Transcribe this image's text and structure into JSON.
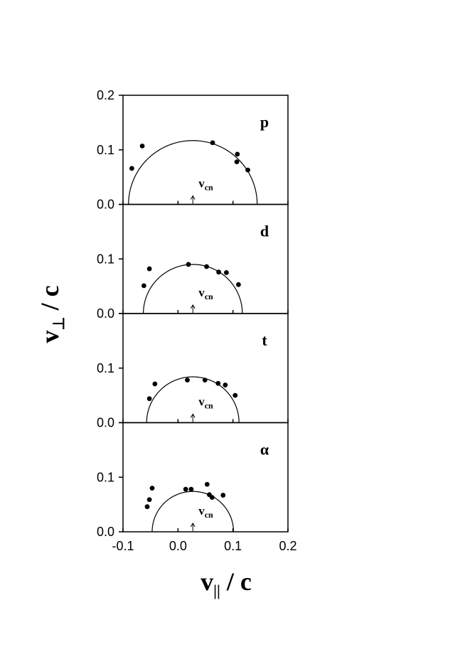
{
  "chart_data": {
    "type": "scatter",
    "xlabel": {
      "main": "v",
      "sub": "||",
      "rest": " / c"
    },
    "ylabel": {
      "main": "v",
      "sub": "⊥",
      "rest": " / c"
    },
    "xlim": [
      -0.1,
      0.2
    ],
    "ylim": [
      0,
      0.2
    ],
    "x_ticks": [
      "-0.1",
      "0.0",
      "0.1",
      "0.2"
    ],
    "y_ticks": [
      "0.0",
      "0.1",
      "0.2"
    ],
    "marker_label": {
      "main": "v",
      "sub": "cn"
    },
    "grid": false,
    "panels": [
      {
        "label": "p",
        "vcn": 0.027,
        "arc": {
          "center": 0.027,
          "radius": 0.117
        },
        "points": [
          {
            "x": -0.084,
            "y": 0.066
          },
          {
            "x": -0.065,
            "y": 0.107
          },
          {
            "x": 0.063,
            "y": 0.113
          },
          {
            "x": 0.108,
            "y": 0.092
          },
          {
            "x": 0.107,
            "y": 0.078
          },
          {
            "x": 0.127,
            "y": 0.063
          }
        ]
      },
      {
        "label": "d",
        "vcn": 0.027,
        "arc": {
          "center": 0.027,
          "radius": 0.09
        },
        "points": [
          {
            "x": -0.062,
            "y": 0.051
          },
          {
            "x": -0.052,
            "y": 0.082
          },
          {
            "x": 0.019,
            "y": 0.09
          },
          {
            "x": 0.052,
            "y": 0.086
          },
          {
            "x": 0.074,
            "y": 0.076
          },
          {
            "x": 0.088,
            "y": 0.075
          },
          {
            "x": 0.11,
            "y": 0.053
          }
        ]
      },
      {
        "label": "t",
        "vcn": 0.027,
        "arc": {
          "center": 0.027,
          "radius": 0.084
        },
        "points": [
          {
            "x": -0.052,
            "y": 0.044
          },
          {
            "x": -0.042,
            "y": 0.071
          },
          {
            "x": 0.017,
            "y": 0.078
          },
          {
            "x": 0.049,
            "y": 0.078
          },
          {
            "x": 0.073,
            "y": 0.072
          },
          {
            "x": 0.086,
            "y": 0.069
          },
          {
            "x": 0.104,
            "y": 0.05
          }
        ]
      },
      {
        "label": "α",
        "vcn": 0.027,
        "arc": {
          "center": 0.027,
          "radius": 0.074
        },
        "points": [
          {
            "x": -0.056,
            "y": 0.046
          },
          {
            "x": -0.052,
            "y": 0.059
          },
          {
            "x": -0.047,
            "y": 0.08
          },
          {
            "x": 0.014,
            "y": 0.078
          },
          {
            "x": 0.024,
            "y": 0.078
          },
          {
            "x": 0.053,
            "y": 0.087
          },
          {
            "x": 0.057,
            "y": 0.068
          },
          {
            "x": 0.062,
            "y": 0.063
          },
          {
            "x": 0.082,
            "y": 0.067
          }
        ]
      }
    ]
  }
}
